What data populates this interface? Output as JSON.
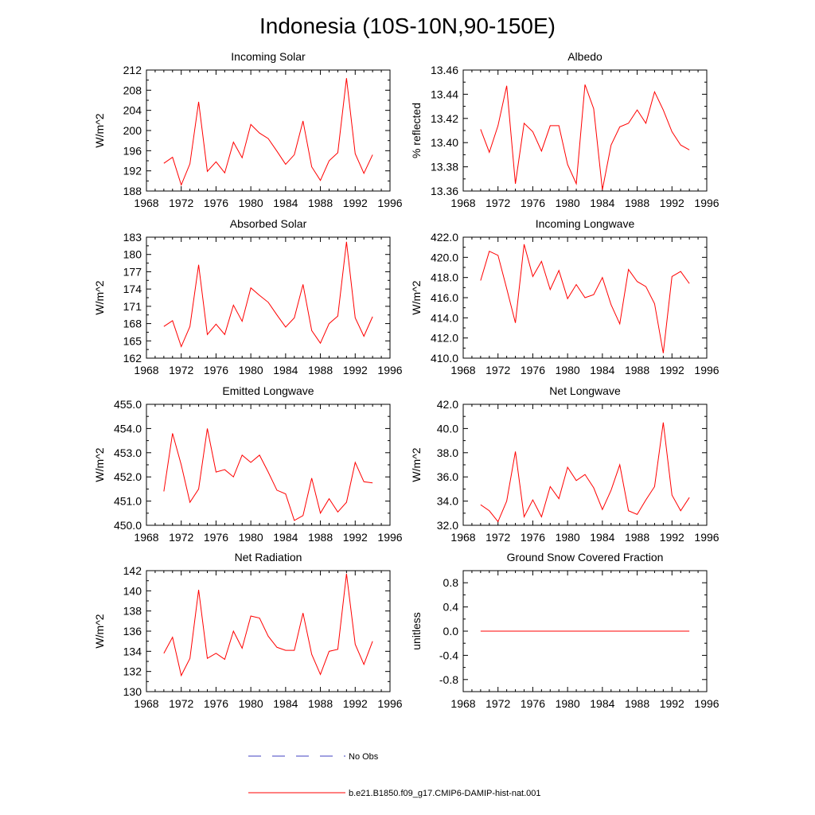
{
  "figure": {
    "title": "Indonesia (10S-10N,90-150E)",
    "line_color": "#ff0000",
    "obs_color": "#4040c0"
  },
  "legend": {
    "entries": [
      {
        "label": "No Obs",
        "style": "dashed",
        "color": "#4040c0"
      },
      {
        "label": "b.e21.B1850.f09_g17.CMIP6-DAMIP-hist-nat.001",
        "style": "solid",
        "color": "#ff0000"
      }
    ]
  },
  "chart_data": [
    {
      "type": "line",
      "title": "Incoming Solar",
      "ylabel": "W/m^2",
      "xlim": [
        1968,
        1996
      ],
      "xticks": [
        "1968",
        "1972",
        "1976",
        "1980",
        "1984",
        "1988",
        "1992",
        "1996"
      ],
      "ylim": [
        188,
        212
      ],
      "yticks": [
        "188",
        "192",
        "196",
        "200",
        "204",
        "208",
        "212"
      ],
      "series": [
        {
          "x": [
            1970,
            1971,
            1972,
            1973,
            1974,
            1975,
            1976,
            1977,
            1978,
            1979,
            1980,
            1981,
            1982,
            1983,
            1984,
            1985,
            1986,
            1987,
            1988,
            1989,
            1990,
            1991,
            1992,
            1993,
            1994
          ],
          "values": [
            193.5,
            194.7,
            189.2,
            193.4,
            205.7,
            191.9,
            193.8,
            191.6,
            197.7,
            194.6,
            201.2,
            199.5,
            198.4,
            195.9,
            193.3,
            195.2,
            201.9,
            192.8,
            190.1,
            194.0,
            195.6,
            210.4,
            195.4,
            191.5,
            195.2
          ]
        }
      ]
    },
    {
      "type": "line",
      "title": "Albedo",
      "ylabel": "% reflected",
      "xlim": [
        1968,
        1996
      ],
      "xticks": [
        "1968",
        "1972",
        "1976",
        "1980",
        "1984",
        "1988",
        "1992",
        "1996"
      ],
      "ylim": [
        13.36,
        13.46
      ],
      "yticks": [
        "13.36",
        "13.38",
        "13.40",
        "13.42",
        "13.44",
        "13.46"
      ],
      "series": [
        {
          "x": [
            1970,
            1971,
            1972,
            1973,
            1974,
            1975,
            1976,
            1977,
            1978,
            1979,
            1980,
            1981,
            1982,
            1983,
            1984,
            1985,
            1986,
            1987,
            1988,
            1989,
            1990,
            1991,
            1992,
            1993,
            1994
          ],
          "values": [
            13.411,
            13.392,
            13.414,
            13.447,
            13.366,
            13.416,
            13.409,
            13.393,
            13.414,
            13.414,
            13.382,
            13.366,
            13.448,
            13.428,
            13.361,
            13.398,
            13.413,
            13.416,
            13.427,
            13.416,
            13.442,
            13.427,
            13.409,
            13.398,
            13.394
          ]
        }
      ]
    },
    {
      "type": "line",
      "title": "Absorbed Solar",
      "ylabel": "W/m^2",
      "xlim": [
        1968,
        1996
      ],
      "xticks": [
        "1968",
        "1972",
        "1976",
        "1980",
        "1984",
        "1988",
        "1992",
        "1996"
      ],
      "ylim": [
        162,
        183
      ],
      "yticks": [
        "162",
        "165",
        "168",
        "171",
        "174",
        "177",
        "180",
        "183"
      ],
      "series": [
        {
          "x": [
            1970,
            1971,
            1972,
            1973,
            1974,
            1975,
            1976,
            1977,
            1978,
            1979,
            1980,
            1981,
            1982,
            1983,
            1984,
            1985,
            1986,
            1987,
            1988,
            1989,
            1990,
            1991,
            1992,
            1993,
            1994
          ],
          "values": [
            167.5,
            168.5,
            164.0,
            167.5,
            178.2,
            166.1,
            167.9,
            166.1,
            171.2,
            168.4,
            174.2,
            172.9,
            171.7,
            169.5,
            167.4,
            169.0,
            174.8,
            166.8,
            164.6,
            168.0,
            169.3,
            182.2,
            169.0,
            165.8,
            169.2
          ]
        }
      ]
    },
    {
      "type": "line",
      "title": "Incoming Longwave",
      "ylabel": "W/m^2",
      "xlim": [
        1968,
        1996
      ],
      "xticks": [
        "1968",
        "1972",
        "1976",
        "1980",
        "1984",
        "1988",
        "1992",
        "1996"
      ],
      "ylim": [
        410.0,
        422.0
      ],
      "yticks": [
        "410.0",
        "412.0",
        "414.0",
        "416.0",
        "418.0",
        "420.0",
        "422.0"
      ],
      "series": [
        {
          "x": [
            1970,
            1971,
            1972,
            1973,
            1974,
            1975,
            1976,
            1977,
            1978,
            1979,
            1980,
            1981,
            1982,
            1983,
            1984,
            1985,
            1986,
            1987,
            1988,
            1989,
            1990,
            1991,
            1992,
            1993,
            1994
          ],
          "values": [
            417.7,
            420.6,
            420.2,
            416.9,
            413.5,
            421.3,
            418.1,
            419.6,
            416.8,
            418.7,
            415.9,
            417.3,
            416.0,
            416.3,
            418.0,
            415.3,
            413.4,
            418.8,
            417.6,
            417.1,
            415.4,
            410.5,
            418.1,
            418.6,
            417.4
          ]
        }
      ]
    },
    {
      "type": "line",
      "title": "Emitted Longwave",
      "ylabel": "W/m^2",
      "xlim": [
        1968,
        1996
      ],
      "xticks": [
        "1968",
        "1972",
        "1976",
        "1980",
        "1984",
        "1988",
        "1992",
        "1996"
      ],
      "ylim": [
        450.0,
        455.0
      ],
      "yticks": [
        "450.0",
        "451.0",
        "452.0",
        "453.0",
        "454.0",
        "455.0"
      ],
      "series": [
        {
          "x": [
            1970,
            1971,
            1972,
            1973,
            1974,
            1975,
            1976,
            1977,
            1978,
            1979,
            1980,
            1981,
            1982,
            1983,
            1984,
            1985,
            1986,
            1987,
            1988,
            1989,
            1990,
            1991,
            1992,
            1993,
            1994
          ],
          "values": [
            451.4,
            453.8,
            452.5,
            450.95,
            451.5,
            454.0,
            452.2,
            452.3,
            452.0,
            452.9,
            452.6,
            452.9,
            452.2,
            451.45,
            451.3,
            450.2,
            450.4,
            451.95,
            450.5,
            451.1,
            450.55,
            450.95,
            452.6,
            451.8,
            451.75
          ]
        }
      ]
    },
    {
      "type": "line",
      "title": "Net Longwave",
      "ylabel": "W/m^2",
      "xlim": [
        1968,
        1996
      ],
      "xticks": [
        "1968",
        "1972",
        "1976",
        "1980",
        "1984",
        "1988",
        "1992",
        "1996"
      ],
      "ylim": [
        32.0,
        42.0
      ],
      "yticks": [
        "32.0",
        "34.0",
        "36.0",
        "38.0",
        "40.0",
        "42.0"
      ],
      "series": [
        {
          "x": [
            1970,
            1971,
            1972,
            1973,
            1974,
            1975,
            1976,
            1977,
            1978,
            1979,
            1980,
            1981,
            1982,
            1983,
            1984,
            1985,
            1986,
            1987,
            1988,
            1989,
            1990,
            1991,
            1992,
            1993,
            1994
          ],
          "values": [
            33.7,
            33.2,
            32.3,
            34.0,
            38.1,
            32.7,
            34.1,
            32.7,
            35.2,
            34.2,
            36.8,
            35.7,
            36.2,
            35.1,
            33.3,
            34.9,
            37.0,
            33.2,
            32.9,
            34.1,
            35.2,
            40.5,
            34.5,
            33.2,
            34.3
          ]
        }
      ]
    },
    {
      "type": "line",
      "title": "Net Radiation",
      "ylabel": "W/m^2",
      "xlim": [
        1968,
        1996
      ],
      "xticks": [
        "1968",
        "1972",
        "1976",
        "1980",
        "1984",
        "1988",
        "1992",
        "1996"
      ],
      "ylim": [
        130,
        142
      ],
      "yticks": [
        "130",
        "132",
        "134",
        "136",
        "138",
        "140",
        "142"
      ],
      "series": [
        {
          "x": [
            1970,
            1971,
            1972,
            1973,
            1974,
            1975,
            1976,
            1977,
            1978,
            1979,
            1980,
            1981,
            1982,
            1983,
            1984,
            1985,
            1986,
            1987,
            1988,
            1989,
            1990,
            1991,
            1992,
            1993,
            1994
          ],
          "values": [
            133.8,
            135.4,
            131.6,
            133.3,
            140.1,
            133.3,
            133.8,
            133.2,
            136.0,
            134.3,
            137.5,
            137.3,
            135.5,
            134.4,
            134.1,
            134.1,
            137.8,
            133.7,
            131.7,
            134.0,
            134.2,
            141.7,
            134.7,
            132.7,
            135.0
          ]
        }
      ]
    },
    {
      "type": "line",
      "title": "Ground Snow Covered Fraction",
      "ylabel": "unitless",
      "xlim": [
        1968,
        1996
      ],
      "xticks": [
        "1968",
        "1972",
        "1976",
        "1980",
        "1984",
        "1988",
        "1992",
        "1996"
      ],
      "ylim": [
        -1.0,
        1.0
      ],
      "yticks": [
        "-0.8",
        "-0.4",
        "0.0",
        "0.4",
        "0.8"
      ],
      "ytick_values": [
        -0.8,
        -0.4,
        0.0,
        0.4,
        0.8
      ],
      "series": [
        {
          "x": [
            1970,
            1994
          ],
          "values": [
            0.0,
            0.0
          ]
        }
      ]
    }
  ]
}
